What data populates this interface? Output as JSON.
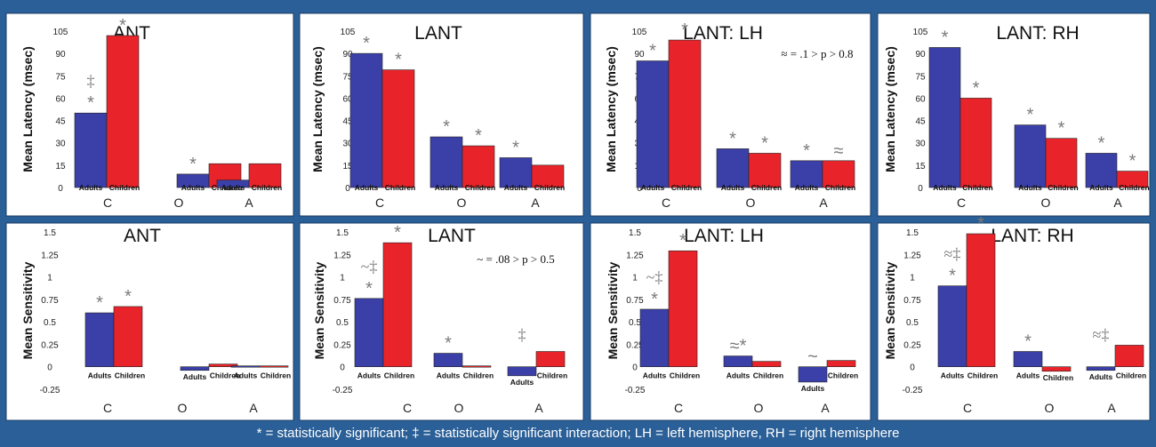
{
  "colors": {
    "frame": "#2a5f97",
    "adults": "#3b3fa8",
    "children": "#e8242a",
    "panel_bg": "#ffffff",
    "annotation": "#7a7a7a"
  },
  "caption": "* = statistically significant; ‡ = statistically significant interaction; LH = left hemisphere, RH = right hemisphere",
  "chart_data": [
    {
      "type": "bar",
      "title": "ANT",
      "ylabel": "Mean Latency (msec)",
      "ylim": [
        0,
        105
      ],
      "yticks": [
        "0",
        "15",
        "30",
        "45",
        "60",
        "75",
        "90",
        "105"
      ],
      "categories": [
        "C",
        "O",
        "A"
      ],
      "group_labels": [
        "Adults",
        "Children"
      ],
      "series": [
        {
          "name": "Adults",
          "values": [
            50,
            9,
            5
          ]
        },
        {
          "name": "Children",
          "values": [
            102,
            16,
            16
          ]
        }
      ],
      "marks": [
        [
          "*",
          "*"
        ],
        [
          "*",
          ""
        ],
        [
          "",
          ""
        ]
      ],
      "interaction": [
        "‡",
        "",
        ""
      ],
      "note": ""
    },
    {
      "type": "bar",
      "title": "LANT",
      "ylabel": "Mean Latency (msec)",
      "ylim": [
        0,
        105
      ],
      "yticks": [
        "0",
        "15",
        "30",
        "45",
        "60",
        "75",
        "90",
        "105"
      ],
      "categories": [
        "C",
        "O",
        "A"
      ],
      "group_labels": [
        "Adults",
        "Children"
      ],
      "series": [
        {
          "name": "Adults",
          "values": [
            90,
            34,
            20
          ]
        },
        {
          "name": "Children",
          "values": [
            79,
            28,
            15
          ]
        }
      ],
      "marks": [
        [
          "*",
          "*"
        ],
        [
          "*",
          "*"
        ],
        [
          "*",
          ""
        ]
      ],
      "interaction": [
        "",
        "",
        ""
      ],
      "note": ""
    },
    {
      "type": "bar",
      "title": "LANT: LH",
      "ylabel": "Mean Latency (msec)",
      "ylim": [
        0,
        105
      ],
      "yticks": [
        "0",
        "15",
        "30",
        "45",
        "60",
        "75",
        "90",
        "105"
      ],
      "categories": [
        "C",
        "O",
        "A"
      ],
      "group_labels": [
        "Adults",
        "Children"
      ],
      "series": [
        {
          "name": "Adults",
          "values": [
            85,
            26,
            18
          ]
        },
        {
          "name": "Children",
          "values": [
            99,
            23,
            18
          ]
        }
      ],
      "marks": [
        [
          "*",
          "*"
        ],
        [
          "*",
          "*"
        ],
        [
          "*",
          "≈"
        ]
      ],
      "interaction": [
        "",
        "",
        ""
      ],
      "note": "≈ = .1 > p > 0.8"
    },
    {
      "type": "bar",
      "title": "LANT: RH",
      "ylabel": "Mean Latency (msec)",
      "ylim": [
        0,
        105
      ],
      "yticks": [
        "0",
        "15",
        "30",
        "45",
        "60",
        "75",
        "90",
        "105"
      ],
      "categories": [
        "C",
        "O",
        "A"
      ],
      "group_labels": [
        "Adults",
        "Children"
      ],
      "series": [
        {
          "name": "Adults",
          "values": [
            94,
            42,
            23
          ]
        },
        {
          "name": "Children",
          "values": [
            60,
            33,
            11
          ]
        }
      ],
      "marks": [
        [
          "*",
          "*"
        ],
        [
          "*",
          "*"
        ],
        [
          "*",
          "*"
        ]
      ],
      "interaction": [
        "",
        "",
        ""
      ],
      "note": ""
    },
    {
      "type": "bar",
      "title": "ANT",
      "ylabel": "Mean Sensitivity",
      "ylim": [
        -0.25,
        1.5
      ],
      "yticks": [
        "-0.25",
        "0",
        "0.25",
        "0.5",
        "0.75",
        "1",
        "1.25",
        "1.5"
      ],
      "categories": [
        "C",
        "O",
        "A"
      ],
      "group_labels": [
        "Adults",
        "Children"
      ],
      "series": [
        {
          "name": "Adults",
          "values": [
            0.6,
            -0.04,
            0.01
          ]
        },
        {
          "name": "Children",
          "values": [
            0.67,
            0.03,
            0.01
          ]
        }
      ],
      "marks": [
        [
          "*",
          "*"
        ],
        [
          "",
          ""
        ],
        [
          "",
          ""
        ]
      ],
      "interaction": [
        "",
        "",
        ""
      ],
      "note": ""
    },
    {
      "type": "bar",
      "title": "LANT",
      "ylabel": "Mean Sensitivity",
      "ylim": [
        -0.25,
        1.5
      ],
      "yticks": [
        "-0.25",
        "0",
        "0.25",
        "0.5",
        "0.75",
        "1",
        "1.25",
        "1.5"
      ],
      "categories": [
        "C",
        "O",
        "A"
      ],
      "group_labels": [
        "Adults",
        "Children"
      ],
      "series": [
        {
          "name": "Adults",
          "values": [
            0.76,
            0.15,
            -0.1
          ]
        },
        {
          "name": "Children",
          "values": [
            1.38,
            0.01,
            0.17
          ]
        }
      ],
      "marks": [
        [
          "*",
          "*"
        ],
        [
          "*",
          ""
        ],
        [
          "",
          ""
        ]
      ],
      "interaction": [
        "~‡",
        "",
        "‡"
      ],
      "note": "~ = .08 > p > 0.5"
    },
    {
      "type": "bar",
      "title": "LANT: LH",
      "ylabel": "Mean Sensitivity",
      "ylim": [
        -0.25,
        1.5
      ],
      "yticks": [
        "-0.25",
        "0",
        "0.25",
        "0.5",
        "0.75",
        "1",
        "1.25",
        "1.5"
      ],
      "categories": [
        "C",
        "O",
        "A"
      ],
      "group_labels": [
        "Adults",
        "Children"
      ],
      "series": [
        {
          "name": "Adults",
          "values": [
            0.64,
            0.12,
            -0.17
          ]
        },
        {
          "name": "Children",
          "values": [
            1.29,
            0.06,
            0.07
          ]
        }
      ],
      "marks": [
        [
          "*",
          "*"
        ],
        [
          "≈*",
          ""
        ],
        [
          "~",
          ""
        ]
      ],
      "interaction": [
        "~‡",
        "",
        ""
      ],
      "note": ""
    },
    {
      "type": "bar",
      "title": "LANT: RH",
      "ylabel": "Mean Sensitivity",
      "ylim": [
        -0.25,
        1.5
      ],
      "yticks": [
        "-0.25",
        "0",
        "0.25",
        "0.5",
        "0.75",
        "1",
        "1.25",
        "1.5"
      ],
      "categories": [
        "C",
        "O",
        "A"
      ],
      "group_labels": [
        "Adults",
        "Children"
      ],
      "series": [
        {
          "name": "Adults",
          "values": [
            0.9,
            0.17,
            -0.04
          ]
        },
        {
          "name": "Children",
          "values": [
            1.48,
            -0.05,
            0.24
          ]
        }
      ],
      "marks": [
        [
          "*",
          "*"
        ],
        [
          "*",
          ""
        ],
        [
          "",
          ""
        ]
      ],
      "interaction": [
        "≈‡",
        "",
        "≈‡"
      ],
      "note": ""
    }
  ]
}
